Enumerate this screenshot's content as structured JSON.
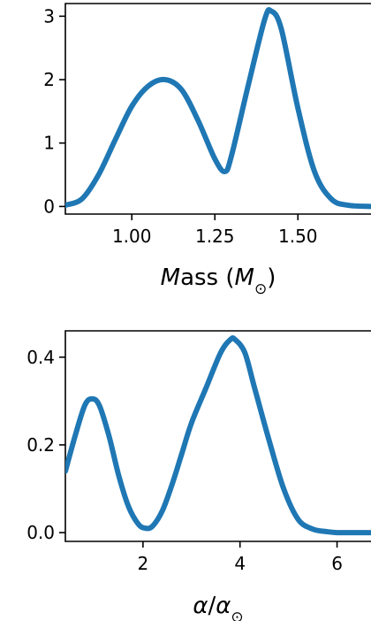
{
  "chart_data": [
    {
      "type": "line",
      "xlabel": "Mass (M⊙)",
      "xlim": [
        0.8,
        1.72
      ],
      "ylim": [
        -0.12,
        3.2
      ],
      "xticks": [
        1.0,
        1.25,
        1.5
      ],
      "xtick_labels": [
        "1.00",
        "1.25",
        "1.50"
      ],
      "yticks": [
        0,
        1,
        2,
        3
      ],
      "ytick_labels": [
        "0",
        "1",
        "2",
        "3"
      ],
      "grid": false,
      "color": "#1f77b4",
      "series": [
        {
          "x": [
            0.8,
            0.85,
            0.9,
            0.95,
            1.0,
            1.05,
            1.1,
            1.15,
            1.2,
            1.25,
            1.28,
            1.3,
            1.35,
            1.4,
            1.42,
            1.45,
            1.5,
            1.55,
            1.6,
            1.65,
            1.72
          ],
          "y": [
            0.02,
            0.12,
            0.5,
            1.05,
            1.58,
            1.9,
            2.0,
            1.84,
            1.35,
            0.75,
            0.55,
            0.8,
            1.9,
            2.95,
            3.08,
            2.8,
            1.55,
            0.55,
            0.12,
            0.02,
            0.0
          ]
        }
      ]
    },
    {
      "type": "line",
      "xlabel": "α/α⊙",
      "xlim": [
        0.4,
        6.7
      ],
      "ylim": [
        -0.02,
        0.46
      ],
      "xticks": [
        2,
        4,
        6
      ],
      "xtick_labels": [
        "2",
        "4",
        "6"
      ],
      "yticks": [
        0.0,
        0.2,
        0.4
      ],
      "ytick_labels": [
        "0.0",
        "0.2",
        "0.4"
      ],
      "grid": false,
      "color": "#1f77b4",
      "series": [
        {
          "x": [
            0.4,
            0.6,
            0.8,
            0.95,
            1.1,
            1.3,
            1.5,
            1.7,
            1.9,
            2.05,
            2.2,
            2.4,
            2.6,
            2.8,
            3.0,
            3.3,
            3.6,
            3.8,
            3.9,
            4.1,
            4.3,
            4.6,
            4.9,
            5.2,
            5.5,
            5.8,
            6.0,
            6.3,
            6.7
          ],
          "y": [
            0.14,
            0.22,
            0.29,
            0.305,
            0.29,
            0.22,
            0.13,
            0.06,
            0.02,
            0.01,
            0.015,
            0.05,
            0.11,
            0.18,
            0.25,
            0.33,
            0.41,
            0.44,
            0.44,
            0.41,
            0.33,
            0.21,
            0.1,
            0.03,
            0.008,
            0.002,
            0.0,
            0.0,
            0.0
          ]
        }
      ]
    }
  ]
}
